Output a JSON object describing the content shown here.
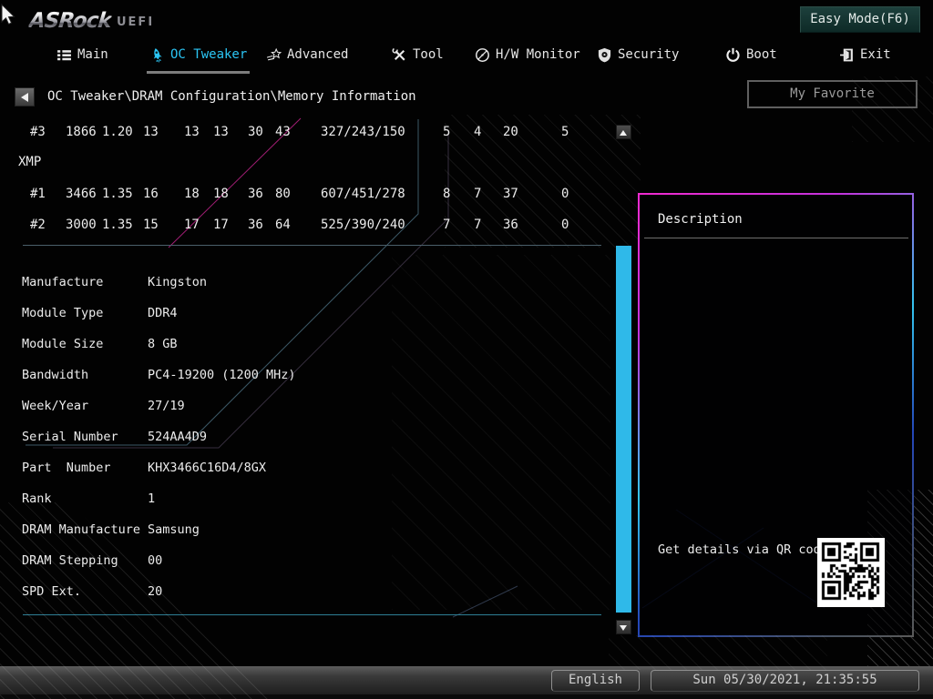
{
  "header": {
    "brand": "ASRock",
    "brand_suffix": "UEFI",
    "easy_mode_label": "Easy Mode(F6)"
  },
  "nav": {
    "tabs": [
      {
        "label": "Main",
        "icon": "list-icon",
        "active": false
      },
      {
        "label": "OC Tweaker",
        "icon": "rocket-icon",
        "active": true
      },
      {
        "label": "Advanced",
        "icon": "star-icon",
        "active": false
      },
      {
        "label": "Tool",
        "icon": "tools-icon",
        "active": false
      },
      {
        "label": "H/W Monitor",
        "icon": "gauge-icon",
        "active": false
      },
      {
        "label": "Security",
        "icon": "shield-icon",
        "active": false
      },
      {
        "label": "Boot",
        "icon": "power-icon",
        "active": false
      },
      {
        "label": "Exit",
        "icon": "exit-icon",
        "active": false
      }
    ]
  },
  "breadcrumb": {
    "path": "OC Tweaker\\DRAM Configuration\\Memory Information"
  },
  "my_favorite_label": "My Favorite",
  "memory_table": {
    "rows": [
      {
        "cells": [
          "#3",
          "1866",
          "1.20",
          "13",
          "13",
          "13",
          "30",
          "43",
          "327/243/150",
          "5",
          "4",
          "20",
          "5"
        ]
      },
      {
        "cells": [
          "XMP"
        ]
      },
      {
        "cells": [
          "#1",
          "3466",
          "1.35",
          "16",
          "18",
          "18",
          "36",
          "80",
          "607/451/278",
          "8",
          "7",
          "37",
          "0"
        ]
      },
      {
        "cells": [
          "#2",
          "3000",
          "1.35",
          "15",
          "17",
          "17",
          "36",
          "64",
          "525/390/240",
          "7",
          "7",
          "36",
          "0"
        ]
      }
    ]
  },
  "memory_info": {
    "rows": [
      {
        "label": "Manufacture",
        "value": "Kingston"
      },
      {
        "label": "Module Type",
        "value": "DDR4"
      },
      {
        "label": "Module Size",
        "value": "8 GB"
      },
      {
        "label": "Bandwidth",
        "value": "PC4-19200 (1200 MHz)"
      },
      {
        "label": "Week/Year",
        "value": "27/19"
      },
      {
        "label": "Serial Number",
        "value": "524AA4D9"
      },
      {
        "label": "Part  Number",
        "value": "KHX3466C16D4/8GX"
      },
      {
        "label": "Rank",
        "value": "1"
      },
      {
        "label": "DRAM Manufacture",
        "value": "Samsung"
      },
      {
        "label": "DRAM Stepping",
        "value": "00"
      },
      {
        "label": "SPD Ext.",
        "value": "20"
      }
    ]
  },
  "description_panel": {
    "title": "Description",
    "qr_caption": "Get details via QR code"
  },
  "status_bar": {
    "language": "English",
    "datetime": "Sun 05/30/2021, 21:35:55"
  },
  "colors": {
    "accent_cyan": "#2bc5f4",
    "scroll_thumb": "#2fb9e9",
    "panel_border_pink": "#f02ad0",
    "panel_border_blue": "#2446b8",
    "easy_mode_bg": "#0e2a27"
  }
}
